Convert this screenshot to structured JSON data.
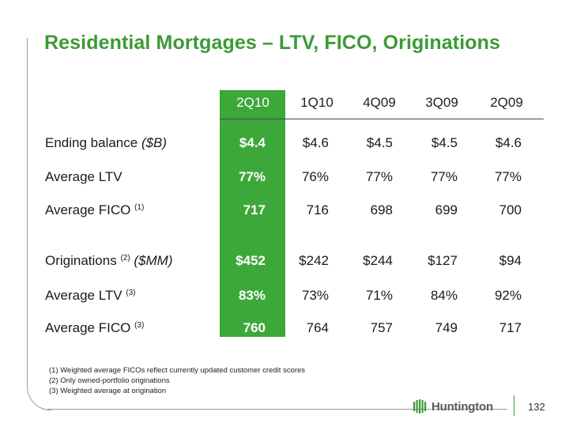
{
  "title": "Residential Mortgages – LTV, FICO, Originations",
  "columns": [
    "2Q10",
    "1Q10",
    "4Q09",
    "3Q09",
    "2Q09"
  ],
  "highlight_color": "#3da83a",
  "rows": [
    {
      "label": "Ending balance ",
      "suffix_italic": "($B)",
      "sup": "",
      "values": [
        "$4.4",
        "$4.6",
        "$4.5",
        "$4.5",
        "$4.6"
      ]
    },
    {
      "label": "Average LTV",
      "suffix_italic": "",
      "sup": "",
      "values": [
        "77%",
        "76%",
        "77%",
        "77%",
        "77%"
      ]
    },
    {
      "label": "Average FICO ",
      "suffix_italic": "",
      "sup": "(1)",
      "values": [
        "717",
        "716",
        "698",
        "699",
        "700"
      ]
    },
    {
      "label": "Originations ",
      "suffix_italic": "($MM)",
      "sup": "(2)",
      "values": [
        "$452",
        "$242",
        "$244",
        "$127",
        "$94"
      ]
    },
    {
      "label": "Average LTV ",
      "suffix_italic": "",
      "sup": "(3)",
      "values": [
        "83%",
        "73%",
        "71%",
        "84%",
        "92%"
      ]
    },
    {
      "label": "Average FICO ",
      "suffix_italic": "",
      "sup": "(3)",
      "values": [
        "760",
        "764",
        "757",
        "749",
        "717"
      ]
    }
  ],
  "footnotes": [
    "(1)  Weighted average FICOs reflect currently updated customer credit scores",
    "(2)  Only owned-portfolio originations",
    "(3)  Weighted average at origination"
  ],
  "logo": {
    "text": "Huntington",
    "icon": "huntington-logo-icon"
  },
  "page_number": "132"
}
